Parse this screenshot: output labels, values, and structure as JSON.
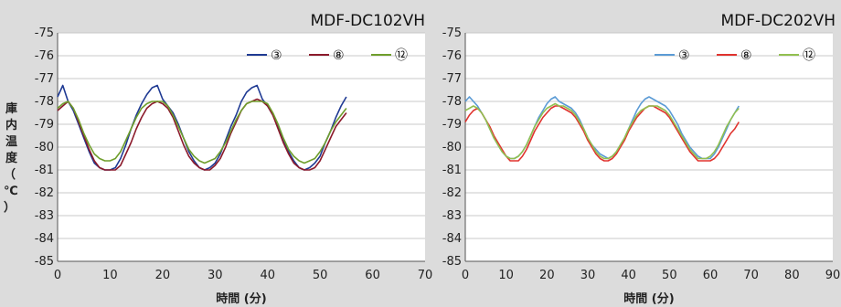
{
  "ylabel_chars": [
    "庫",
    "内",
    "温",
    "度",
    "（",
    "℃",
    "）"
  ],
  "chart_data": [
    {
      "type": "line",
      "title": "MDF-DC102VH",
      "xlabel": "時間 (分)",
      "ylabel": "庫内温度（℃）",
      "xlim": [
        0,
        70
      ],
      "ylim": [
        -85,
        -75
      ],
      "xticks": [
        0,
        10,
        20,
        30,
        40,
        50,
        60,
        70
      ],
      "yticks": [
        -75,
        -76,
        -77,
        -78,
        -79,
        -80,
        -81,
        -82,
        -83,
        -84,
        -85
      ],
      "grid": true,
      "legend": "top-right",
      "series": [
        {
          "name": "③",
          "color": "#1f3a93",
          "x": [
            0,
            1,
            2,
            3,
            4,
            5,
            6,
            7,
            8,
            9,
            10,
            11,
            12,
            13,
            14,
            15,
            16,
            17,
            18,
            19,
            20,
            21,
            22,
            23,
            24,
            25,
            26,
            27,
            28,
            29,
            30,
            31,
            32,
            33,
            34,
            35,
            36,
            37,
            38,
            39,
            40,
            41,
            42,
            43,
            44,
            45,
            46,
            47,
            48,
            49,
            50,
            51,
            52,
            53,
            54,
            55
          ],
          "y": [
            -77.8,
            -77.3,
            -78.0,
            -78.4,
            -79.0,
            -79.6,
            -80.2,
            -80.7,
            -80.9,
            -81.0,
            -81.0,
            -80.9,
            -80.5,
            -79.9,
            -79.2,
            -78.6,
            -78.1,
            -77.7,
            -77.4,
            -77.3,
            -77.9,
            -78.2,
            -78.5,
            -79.0,
            -79.6,
            -80.2,
            -80.6,
            -80.9,
            -81.0,
            -80.9,
            -80.7,
            -80.3,
            -79.7,
            -79.1,
            -78.6,
            -78.0,
            -77.6,
            -77.4,
            -77.3,
            -77.9,
            -78.2,
            -78.6,
            -79.1,
            -79.7,
            -80.2,
            -80.6,
            -80.9,
            -81.0,
            -80.9,
            -80.7,
            -80.4,
            -79.8,
            -79.3,
            -78.7,
            -78.2,
            -77.8
          ]
        },
        {
          "name": "⑧",
          "color": "#8b1a2b",
          "x": [
            0,
            1,
            2,
            3,
            4,
            5,
            6,
            7,
            8,
            9,
            10,
            11,
            12,
            13,
            14,
            15,
            16,
            17,
            18,
            19,
            20,
            21,
            22,
            23,
            24,
            25,
            26,
            27,
            28,
            29,
            30,
            31,
            32,
            33,
            34,
            35,
            36,
            37,
            38,
            39,
            40,
            41,
            42,
            43,
            44,
            45,
            46,
            47,
            48,
            49,
            50,
            51,
            52,
            53,
            54,
            55
          ],
          "y": [
            -78.4,
            -78.2,
            -78.0,
            -78.3,
            -78.9,
            -79.5,
            -80.1,
            -80.6,
            -80.9,
            -81.0,
            -81.0,
            -81.0,
            -80.8,
            -80.3,
            -79.8,
            -79.2,
            -78.7,
            -78.3,
            -78.1,
            -78.0,
            -78.1,
            -78.3,
            -78.7,
            -79.3,
            -79.9,
            -80.4,
            -80.7,
            -80.9,
            -81.0,
            -81.0,
            -80.8,
            -80.5,
            -80.0,
            -79.4,
            -78.9,
            -78.4,
            -78.1,
            -78.0,
            -77.9,
            -78.0,
            -78.2,
            -78.6,
            -79.2,
            -79.8,
            -80.3,
            -80.7,
            -80.9,
            -81.0,
            -81.0,
            -80.9,
            -80.6,
            -80.1,
            -79.6,
            -79.1,
            -78.8,
            -78.5
          ]
        },
        {
          "name": "⑫",
          "color": "#6f9e2c",
          "x": [
            0,
            1,
            2,
            3,
            4,
            5,
            6,
            7,
            8,
            9,
            10,
            11,
            12,
            13,
            14,
            15,
            16,
            17,
            18,
            19,
            20,
            21,
            22,
            23,
            24,
            25,
            26,
            27,
            28,
            29,
            30,
            31,
            32,
            33,
            34,
            35,
            36,
            37,
            38,
            39,
            40,
            41,
            42,
            43,
            44,
            45,
            46,
            47,
            48,
            49,
            50,
            51,
            52,
            53,
            54,
            55
          ],
          "y": [
            -78.3,
            -78.1,
            -78.0,
            -78.3,
            -78.8,
            -79.4,
            -79.9,
            -80.3,
            -80.5,
            -80.6,
            -80.6,
            -80.5,
            -80.2,
            -79.7,
            -79.2,
            -78.7,
            -78.3,
            -78.1,
            -78.0,
            -78.0,
            -78.0,
            -78.2,
            -78.6,
            -79.1,
            -79.6,
            -80.1,
            -80.4,
            -80.6,
            -80.7,
            -80.6,
            -80.5,
            -80.2,
            -79.8,
            -79.3,
            -78.8,
            -78.4,
            -78.1,
            -78.0,
            -78.0,
            -78.0,
            -78.1,
            -78.5,
            -79.0,
            -79.6,
            -80.1,
            -80.4,
            -80.6,
            -80.7,
            -80.6,
            -80.5,
            -80.2,
            -79.8,
            -79.3,
            -78.9,
            -78.6,
            -78.3
          ]
        }
      ]
    },
    {
      "type": "line",
      "title": "MDF-DC202VH",
      "xlabel": "時間 (分)",
      "ylabel": "",
      "xlim": [
        0,
        90
      ],
      "ylim": [
        -85,
        -75
      ],
      "xticks": [
        0,
        10,
        20,
        30,
        40,
        50,
        60,
        70,
        80,
        90
      ],
      "yticks": [
        -75,
        -76,
        -77,
        -78,
        -79,
        -80,
        -81,
        -82,
        -83,
        -84,
        -85
      ],
      "grid": true,
      "legend": "top-right",
      "series": [
        {
          "name": "③",
          "color": "#5b9bd5",
          "x": [
            0,
            1,
            2,
            3,
            4,
            5,
            6,
            7,
            8,
            9,
            10,
            11,
            12,
            13,
            14,
            15,
            16,
            17,
            18,
            19,
            20,
            21,
            22,
            23,
            24,
            25,
            26,
            27,
            28,
            29,
            30,
            31,
            32,
            33,
            34,
            35,
            36,
            37,
            38,
            39,
            40,
            41,
            42,
            43,
            44,
            45,
            46,
            47,
            48,
            49,
            50,
            51,
            52,
            53,
            54,
            55,
            56,
            57,
            58,
            59,
            60,
            61,
            62,
            63,
            64,
            65,
            66,
            67
          ],
          "y": [
            -78.0,
            -77.8,
            -78.0,
            -78.2,
            -78.5,
            -78.8,
            -79.2,
            -79.6,
            -79.9,
            -80.2,
            -80.4,
            -80.5,
            -80.5,
            -80.4,
            -80.2,
            -79.9,
            -79.5,
            -79.1,
            -78.7,
            -78.4,
            -78.1,
            -77.9,
            -77.8,
            -78.0,
            -78.1,
            -78.2,
            -78.3,
            -78.5,
            -78.8,
            -79.2,
            -79.6,
            -79.9,
            -80.1,
            -80.3,
            -80.4,
            -80.5,
            -80.4,
            -80.2,
            -79.9,
            -79.6,
            -79.2,
            -78.8,
            -78.4,
            -78.1,
            -77.9,
            -77.8,
            -77.9,
            -78.0,
            -78.1,
            -78.2,
            -78.4,
            -78.7,
            -79.0,
            -79.4,
            -79.7,
            -80.0,
            -80.2,
            -80.4,
            -80.5,
            -80.5,
            -80.5,
            -80.3,
            -80.0,
            -79.6,
            -79.2,
            -78.8,
            -78.5,
            -78.2
          ]
        },
        {
          "name": "⑧",
          "color": "#e0332e",
          "x": [
            0,
            1,
            2,
            3,
            4,
            5,
            6,
            7,
            8,
            9,
            10,
            11,
            12,
            13,
            14,
            15,
            16,
            17,
            18,
            19,
            20,
            21,
            22,
            23,
            24,
            25,
            26,
            27,
            28,
            29,
            30,
            31,
            32,
            33,
            34,
            35,
            36,
            37,
            38,
            39,
            40,
            41,
            42,
            43,
            44,
            45,
            46,
            47,
            48,
            49,
            50,
            51,
            52,
            53,
            54,
            55,
            56,
            57,
            58,
            59,
            60,
            61,
            62,
            63,
            64,
            65,
            66,
            67
          ],
          "y": [
            -78.9,
            -78.6,
            -78.4,
            -78.3,
            -78.5,
            -78.8,
            -79.1,
            -79.5,
            -79.8,
            -80.1,
            -80.4,
            -80.6,
            -80.6,
            -80.6,
            -80.4,
            -80.1,
            -79.7,
            -79.3,
            -79.0,
            -78.7,
            -78.5,
            -78.3,
            -78.2,
            -78.2,
            -78.3,
            -78.4,
            -78.5,
            -78.7,
            -79.0,
            -79.3,
            -79.7,
            -80.0,
            -80.3,
            -80.5,
            -80.6,
            -80.6,
            -80.5,
            -80.3,
            -80.0,
            -79.7,
            -79.3,
            -79.0,
            -78.7,
            -78.5,
            -78.3,
            -78.2,
            -78.2,
            -78.3,
            -78.4,
            -78.5,
            -78.7,
            -79.0,
            -79.3,
            -79.6,
            -79.9,
            -80.2,
            -80.4,
            -80.6,
            -80.6,
            -80.6,
            -80.6,
            -80.5,
            -80.3,
            -80.0,
            -79.7,
            -79.4,
            -79.2,
            -78.9
          ]
        },
        {
          "name": "⑫",
          "color": "#92c050",
          "x": [
            0,
            1,
            2,
            3,
            4,
            5,
            6,
            7,
            8,
            9,
            10,
            11,
            12,
            13,
            14,
            15,
            16,
            17,
            18,
            19,
            20,
            21,
            22,
            23,
            24,
            25,
            26,
            27,
            28,
            29,
            30,
            31,
            32,
            33,
            34,
            35,
            36,
            37,
            38,
            39,
            40,
            41,
            42,
            43,
            44,
            45,
            46,
            47,
            48,
            49,
            50,
            51,
            52,
            53,
            54,
            55,
            56,
            57,
            58,
            59,
            60,
            61,
            62,
            63,
            64,
            65,
            66,
            67
          ],
          "y": [
            -78.4,
            -78.3,
            -78.2,
            -78.3,
            -78.5,
            -78.8,
            -79.2,
            -79.6,
            -79.9,
            -80.2,
            -80.4,
            -80.5,
            -80.5,
            -80.4,
            -80.2,
            -79.9,
            -79.5,
            -79.1,
            -78.8,
            -78.5,
            -78.3,
            -78.2,
            -78.1,
            -78.2,
            -78.2,
            -78.3,
            -78.4,
            -78.6,
            -78.9,
            -79.2,
            -79.6,
            -79.9,
            -80.2,
            -80.4,
            -80.5,
            -80.5,
            -80.4,
            -80.2,
            -79.9,
            -79.6,
            -79.2,
            -78.9,
            -78.6,
            -78.4,
            -78.3,
            -78.2,
            -78.2,
            -78.2,
            -78.3,
            -78.4,
            -78.6,
            -78.9,
            -79.2,
            -79.5,
            -79.8,
            -80.1,
            -80.3,
            -80.5,
            -80.5,
            -80.5,
            -80.4,
            -80.2,
            -79.9,
            -79.5,
            -79.1,
            -78.8,
            -78.5,
            -78.3
          ]
        }
      ]
    }
  ]
}
